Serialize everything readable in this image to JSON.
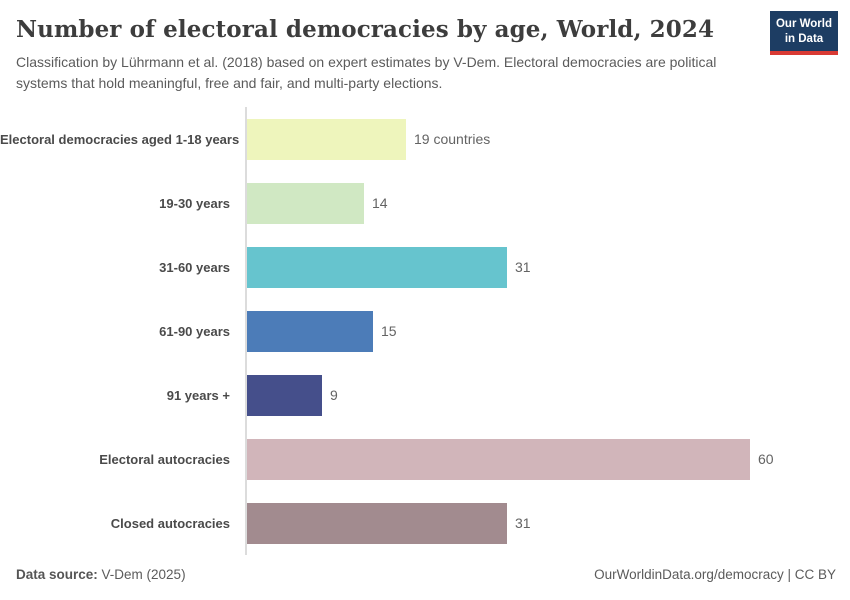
{
  "header": {
    "title": "Number of electoral democracies by age, World, 2024",
    "subtitle": "Classification by Lührmann et al. (2018) based on expert estimates by V-Dem. Electoral democracies are political systems that hold meaningful, free and fair, and multi-party elections."
  },
  "logo": {
    "line1": "Our World",
    "line2": "in Data",
    "bg_color": "#1d3d63",
    "accent_color": "#d93a34"
  },
  "chart_data": {
    "type": "bar",
    "orientation": "horizontal",
    "title": "Number of electoral democracies by age, World, 2024",
    "categories": [
      "Electoral democracies aged 1-18 years",
      "19-30 years",
      "31-60 years",
      "61-90 years",
      "91 years +",
      "Electoral autocracies",
      "Closed autocracies"
    ],
    "values": [
      19,
      14,
      31,
      15,
      9,
      60,
      31
    ],
    "value_labels": [
      "19 countries",
      "14",
      "31",
      "15",
      "9",
      "60",
      "31"
    ],
    "bar_colors": [
      "#eef5bc",
      "#d0e8c3",
      "#66c4ce",
      "#4c7cb8",
      "#454f8b",
      "#d1b5ba",
      "#a28b8f"
    ],
    "unit": "countries",
    "xlim": [
      0,
      60
    ],
    "grid": false,
    "legend": "none"
  },
  "footer": {
    "source_label": "Data source:",
    "source_value": " V-Dem (2025)",
    "link": "OurWorldinData.org/democracy",
    "separator": " | ",
    "license": "CC BY"
  }
}
